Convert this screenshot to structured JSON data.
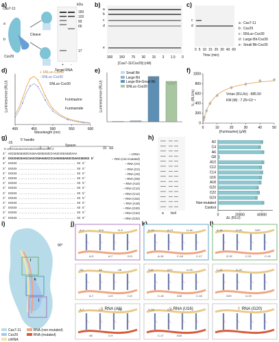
{
  "panels": {
    "a": "a)",
    "b": "b)",
    "c": "c)",
    "d": "d)",
    "e": "e)",
    "f": "f)",
    "g": "g)",
    "h": "h)",
    "i": "i)",
    "j": "j)",
    "k": "k)",
    "l": "l)"
  },
  "panel_a": {
    "cas_label": "Cas7-11",
    "a_mark": "a",
    "b_mark": "b",
    "csx_label": "Csx29",
    "cleave": "Cleave",
    "target_rna": "Target RNA",
    "kda": "kDa",
    "markers": [
      "183",
      "103",
      "93",
      "66",
      "17"
    ],
    "lane_signs": [
      "+",
      "-"
    ]
  },
  "panel_b": {
    "band_letters": [
      "a",
      "b",
      "c",
      "d",
      "e"
    ],
    "xtick_labels": [
      "300",
      "150",
      "75",
      "30",
      "15",
      "3",
      "1.5",
      "0"
    ],
    "xlabel": "[Cas7-11/Csx29] (nM)"
  },
  "panel_c": {
    "band_letters": [
      "c",
      "d"
    ],
    "xtick_labels": [
      "0",
      "5",
      "10",
      "15",
      "20",
      "30",
      "40",
      "60"
    ],
    "xlabel": "Time (min)",
    "legend": [
      "a : Cas7-11",
      "b : Csx29",
      "c : SNLuc-Csx30",
      "d : Large Bit-Csx30",
      "e : Small Bit-Csx30"
    ]
  },
  "chart_data": [
    {
      "type": "line",
      "panel": "d",
      "ylabel": "Luminescence (RLU)",
      "xlabel": "Wavelength (nm)",
      "xlim": [
        400,
        600
      ],
      "xticks": [
        400,
        450,
        500,
        550,
        600
      ],
      "legend_entries": [
        "+ SNLuc-Csx30",
        "- SNLuc-Csx30"
      ],
      "annotations": [
        "SNLuc-Csx30",
        "Furimazine",
        "Furimamide"
      ],
      "series": [
        {
          "name": "+ SNLuc-Csx30",
          "x": [
            400,
            410,
            420,
            430,
            440,
            450,
            460,
            470,
            480,
            490,
            500,
            520,
            540,
            560,
            580,
            600
          ],
          "y": [
            0.2,
            0.35,
            0.55,
            0.78,
            0.95,
            1.0,
            0.93,
            0.78,
            0.6,
            0.45,
            0.33,
            0.2,
            0.12,
            0.08,
            0.05,
            0.03
          ],
          "color": "#e8a64c"
        },
        {
          "name": "- SNLuc-Csx30",
          "x": [
            400,
            410,
            420,
            430,
            440,
            450,
            460,
            470,
            480,
            490,
            500,
            520,
            540,
            560,
            580,
            600
          ],
          "y": [
            0.15,
            0.28,
            0.45,
            0.66,
            0.8,
            0.85,
            0.79,
            0.66,
            0.51,
            0.38,
            0.28,
            0.17,
            0.1,
            0.06,
            0.04,
            0.03
          ],
          "color": "#7a8fc7"
        }
      ]
    },
    {
      "type": "bar",
      "panel": "e",
      "ylabel": "Luminescence (RLU)",
      "categories": [
        "Small Bit",
        "Large Bit",
        "Large Bit+Small Bit",
        "SNLuc-Csx30"
      ],
      "legend_entries": [
        "Small Bit",
        "Large Bit",
        "Large Bit+Small Bit",
        "SNLuc-Csx30"
      ],
      "values": [
        0.01,
        0.02,
        0.92,
        0.82
      ],
      "colors": [
        "#c8dbe8",
        "#8fb3cf",
        "#5d8fb5",
        "#a8c7a0"
      ]
    },
    {
      "type": "scatter",
      "panel": "f",
      "ylabel": "V₀ (RLU/s)",
      "xlabel": "[Furimazine] (μM)",
      "xlim": [
        0,
        50
      ],
      "ylim": [
        0,
        1000
      ],
      "xticks": [
        0,
        10,
        20,
        30,
        40,
        50
      ],
      "yticks": [
        0,
        200,
        400,
        600,
        800,
        1000
      ],
      "vmax_label": "Vmax (RLU/s) : 985.50",
      "km_label": "KM (M) : 7.25×10⁻⁶",
      "x": [
        0.5,
        1,
        2.5,
        5,
        10,
        20,
        30,
        40,
        50
      ],
      "y": [
        70,
        120,
        250,
        400,
        560,
        720,
        790,
        860,
        880
      ]
    },
    {
      "type": "bar",
      "panel": "h",
      "xlabel": "ΔL (RLU)",
      "xticks": [
        0,
        20000,
        40000
      ],
      "xtick_labels": [
        "0",
        "20000",
        "40000"
      ],
      "categories": [
        "A2",
        "C4",
        "A6",
        "G8",
        "A10",
        "C12",
        "C14",
        "U16",
        "A18",
        "G20",
        "C22",
        "G24",
        "Non-mutated",
        "Control"
      ],
      "values": [
        41000,
        39000,
        42000,
        1500,
        42000,
        40000,
        41000,
        40000,
        39500,
        37000,
        38000,
        36000,
        42000,
        500
      ]
    }
  ],
  "panel_g": {
    "handle": "5' handle",
    "spacer": "Spacer",
    "mark_left": "-15",
    "mark_mid": "-1",
    "mark_one": "1",
    "mark_right": "31",
    "mark_end": "32",
    "crrna_seq": "5'-UUGGAUAUGAGAAGGAGGAGGC-3'",
    "rows": [
      {
        "label": "crRNA",
        "seq": "3'  AGCUUGGUUGGCAUUAAGGGGUUCCAAUCAGGAUUGAAA"
      },
      {
        "label": "RNA (non-mutated)",
        "seq": "3' XXXXXUCGAACCAACCGUAAUUCCCCAAGGUUAGUCCUAACUUUXX 5'"
      },
      {
        "label": "RNA (A2)",
        "seq": "3' XXXXX ................................ XX 5'"
      },
      {
        "label": "RNA (C4)",
        "seq": "3' XXXXX ................................ XX 5'"
      },
      {
        "label": "RNA (A6)",
        "seq": "3' XXXXX ................................ XX 5'"
      },
      {
        "label": "RNA (G8)",
        "seq": "3' XXXXX ................................ XX 5'"
      },
      {
        "label": "RNA (A10)",
        "seq": "3' XXXXX ................................ XX 5'"
      },
      {
        "label": "RNA (C12)",
        "seq": "3' XXXXX ................................ XX 5'"
      },
      {
        "label": "RNA (C14)",
        "seq": "3' XXXXX ................................ XX 5'"
      },
      {
        "label": "RNA (U16)",
        "seq": "3' XXXXX ................................ XX 5'"
      },
      {
        "label": "RNA (A18)",
        "seq": "3' XXXXX ................................ XX 5'"
      },
      {
        "label": "RNA (G20)",
        "seq": "3' XXXXX ................................ XX 5'"
      },
      {
        "label": "RNA (C22)",
        "seq": "3' XXXXX ................................ XX 5'"
      },
      {
        "label": "RNA (G24)",
        "seq": "3' XXXXX ................................ XX 5'"
      }
    ]
  },
  "panel_h_gel": {
    "lane_labels": [
      "a",
      "bcd"
    ]
  },
  "panel_i": {
    "rotate": "90°",
    "legend": [
      "Cas7-11",
      "Csx29",
      "crRNA",
      "RNA (non-mutated)",
      "RNA (mutated)"
    ],
    "legend_colors": [
      "#b7dbe8",
      "#a6c8ec",
      "#f1e4b0",
      "#f0a580",
      "#d65a3a"
    ],
    "box_labels": [
      "l",
      "k",
      "j"
    ]
  },
  "panel_jkl": {
    "j_caption": "RNA (A6)",
    "k_caption": "RNA (U16)",
    "l_caption": "RNA (G20)",
    "j_labels": [
      "A-1",
      "A-3",
      "G-5",
      "A-7",
      "G-9",
      "G-5",
      "G4",
      "A-7",
      "A6",
      "U-9",
      "U8",
      "C-8",
      "A-7",
      "A6",
      "C-5",
      "U-9",
      "U8"
    ],
    "k_labels": [
      "A-13",
      "A-15",
      "A-17",
      "C-18",
      "U-16",
      "C-17",
      "G15",
      "C-16",
      "G17",
      "U16",
      "U-15",
      "C-18",
      "U-16",
      "C-17",
      "G15",
      "A18"
    ],
    "l_labels": [
      "A-18",
      "G-22",
      "G-20",
      "C-21",
      "G20",
      "C-19",
      "C-21",
      "G20",
      "G-22",
      "U-19"
    ]
  }
}
